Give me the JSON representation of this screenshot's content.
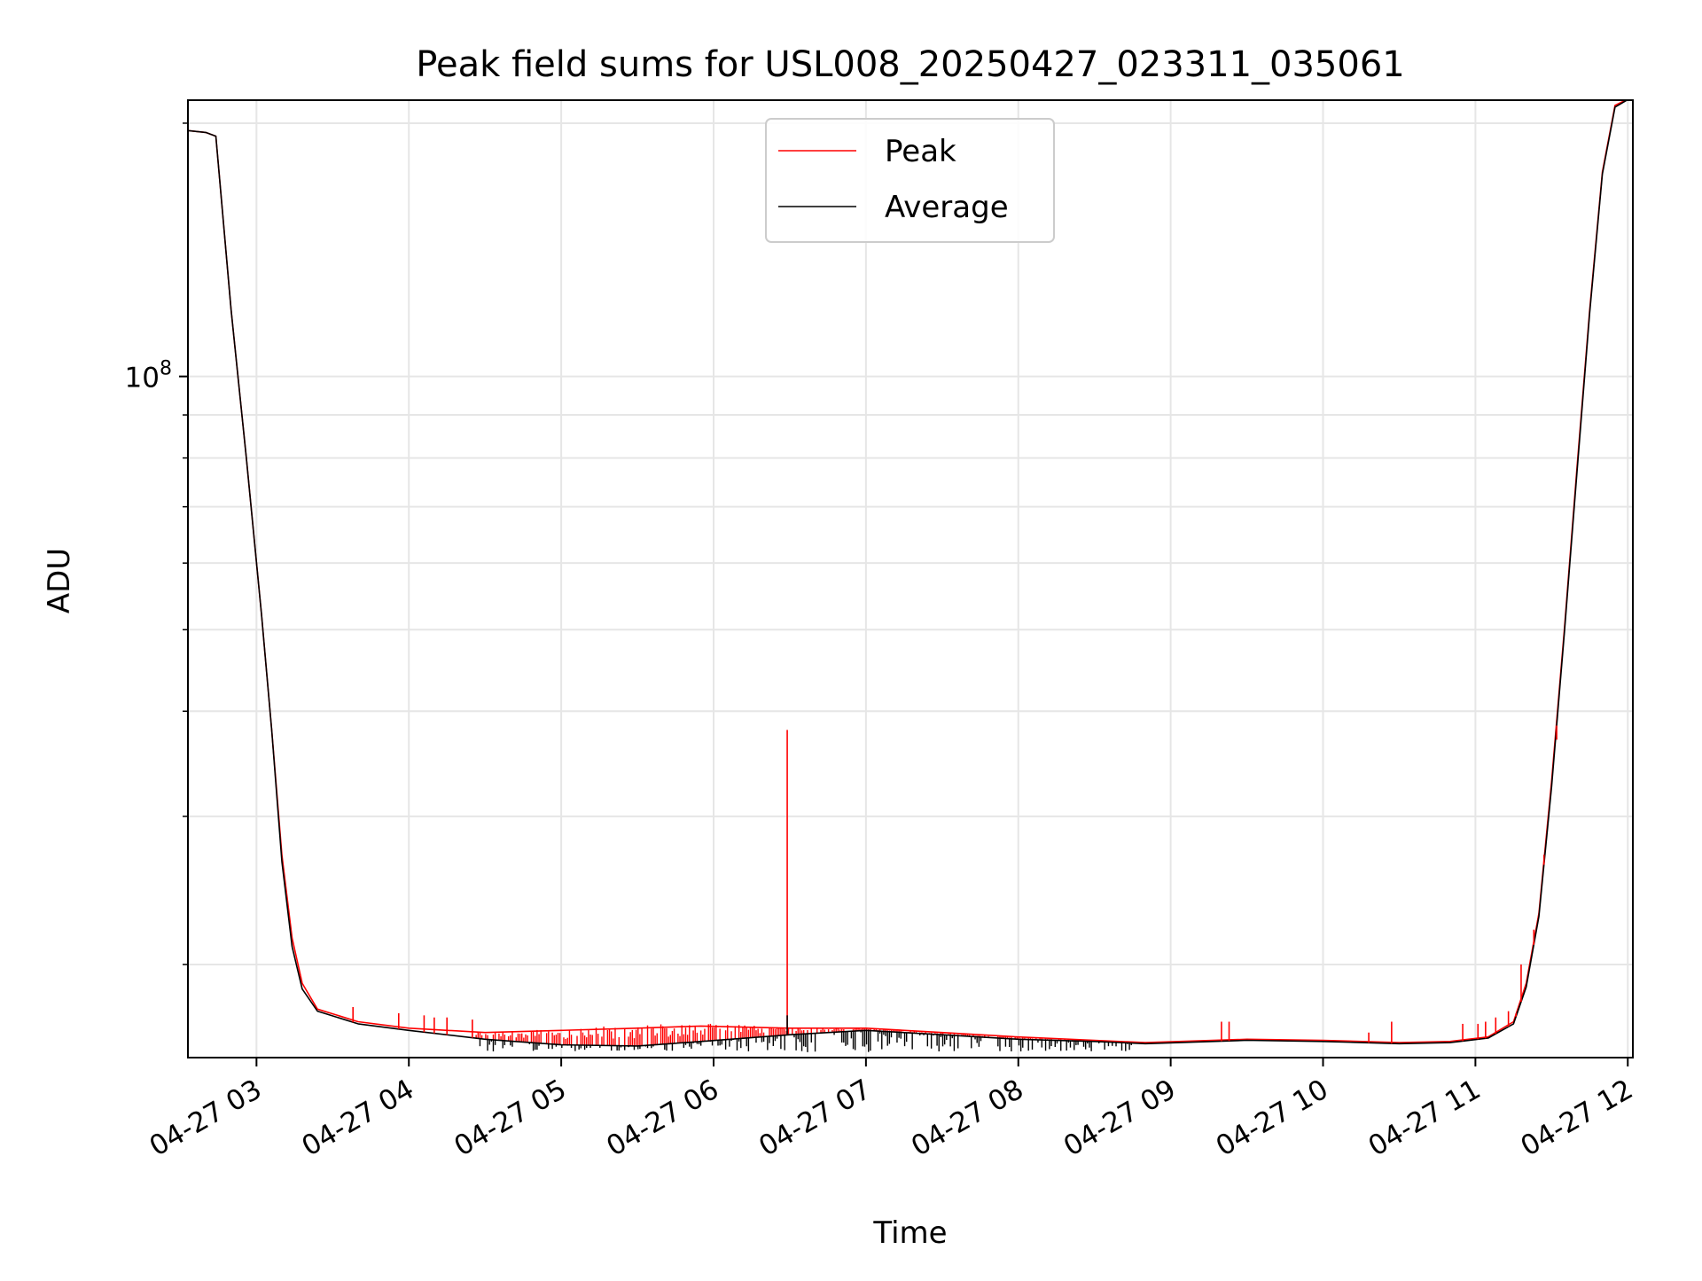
{
  "chart_data": {
    "type": "line",
    "title": "Peak field sums for USL008_20250427_023311_035061",
    "xlabel": "Time",
    "ylabel": "ADU",
    "y_scale": "log",
    "ylim": [
      15500000,
      213000000
    ],
    "xlim": [
      "2025-04-27 02:33",
      "2025-04-27 12:02"
    ],
    "x_ticks": [
      {
        "time": "2025-04-27 03:00",
        "label": "04-27 03"
      },
      {
        "time": "2025-04-27 04:00",
        "label": "04-27 04"
      },
      {
        "time": "2025-04-27 05:00",
        "label": "04-27 05"
      },
      {
        "time": "2025-04-27 06:00",
        "label": "04-27 06"
      },
      {
        "time": "2025-04-27 07:00",
        "label": "04-27 07"
      },
      {
        "time": "2025-04-27 08:00",
        "label": "04-27 08"
      },
      {
        "time": "2025-04-27 09:00",
        "label": "04-27 09"
      },
      {
        "time": "2025-04-27 10:00",
        "label": "04-27 10"
      },
      {
        "time": "2025-04-27 11:00",
        "label": "04-27 11"
      },
      {
        "time": "2025-04-27 12:00",
        "label": "04-27 12"
      }
    ],
    "y_major_ticks": [
      {
        "value": 100000000,
        "base": "10",
        "exponent": "8"
      }
    ],
    "y_minor_ticks": [
      20000000,
      30000000,
      40000000,
      50000000,
      60000000,
      70000000,
      80000000,
      90000000,
      200000000
    ],
    "grid": true,
    "legend_position": "upper center",
    "series": [
      {
        "name": "Peak",
        "color": "#ff0000",
        "points": [
          [
            "2025-04-27 02:33",
            196000000
          ],
          [
            "2025-04-27 02:40",
            195000000
          ],
          [
            "2025-04-27 02:44",
            193000000
          ],
          [
            "2025-04-27 02:50",
            120000000
          ],
          [
            "2025-04-27 02:56",
            80000000
          ],
          [
            "2025-04-27 03:02",
            52000000
          ],
          [
            "2025-04-27 03:06",
            38000000
          ],
          [
            "2025-04-27 03:10",
            27000000
          ],
          [
            "2025-04-27 03:14",
            21500000
          ],
          [
            "2025-04-27 03:18",
            19000000
          ],
          [
            "2025-04-27 03:24",
            17700000
          ],
          [
            "2025-04-27 03:40",
            17100000
          ],
          [
            "2025-04-27 04:00",
            16800000
          ],
          [
            "2025-04-27 04:30",
            16600000
          ],
          [
            "2025-04-27 05:00",
            16700000
          ],
          [
            "2025-04-27 05:30",
            16800000
          ],
          [
            "2025-04-27 05:55",
            16900000
          ],
          [
            "2025-04-27 06:30",
            16800000
          ],
          [
            "2025-04-27 07:00",
            16800000
          ],
          [
            "2025-04-27 07:30",
            16600000
          ],
          [
            "2025-04-27 08:00",
            16400000
          ],
          [
            "2025-04-27 08:30",
            16250000
          ],
          [
            "2025-04-27 08:50",
            16150000
          ],
          [
            "2025-04-27 09:30",
            16300000
          ],
          [
            "2025-04-27 10:00",
            16250000
          ],
          [
            "2025-04-27 10:30",
            16150000
          ],
          [
            "2025-04-27 10:50",
            16200000
          ],
          [
            "2025-04-27 11:05",
            16400000
          ],
          [
            "2025-04-27 11:15",
            17100000
          ],
          [
            "2025-04-27 11:20",
            19000000
          ],
          [
            "2025-04-27 11:25",
            23000000
          ],
          [
            "2025-04-27 11:30",
            33000000
          ],
          [
            "2025-04-27 11:35",
            50000000
          ],
          [
            "2025-04-27 11:40",
            78000000
          ],
          [
            "2025-04-27 11:45",
            120000000
          ],
          [
            "2025-04-27 11:50",
            175000000
          ],
          [
            "2025-04-27 11:55",
            210000000
          ],
          [
            "2025-04-27 12:02",
            215000000
          ]
        ],
        "spikes": [
          [
            "2025-04-27 03:38",
            17800000
          ],
          [
            "2025-04-27 03:56",
            17500000
          ],
          [
            "2025-04-27 04:06",
            17400000
          ],
          [
            "2025-04-27 04:10",
            17300000
          ],
          [
            "2025-04-27 04:15",
            17300000
          ],
          [
            "2025-04-27 04:25",
            17200000
          ],
          [
            "2025-04-27 06:29",
            38000000
          ],
          [
            "2025-04-27 09:20",
            17100000
          ],
          [
            "2025-04-27 09:23",
            17100000
          ],
          [
            "2025-04-27 10:18",
            16600000
          ],
          [
            "2025-04-27 10:27",
            17100000
          ],
          [
            "2025-04-27 10:55",
            17000000
          ],
          [
            "2025-04-27 11:01",
            17000000
          ],
          [
            "2025-04-27 11:04",
            17100000
          ],
          [
            "2025-04-27 11:08",
            17300000
          ],
          [
            "2025-04-27 11:13",
            17600000
          ],
          [
            "2025-04-27 11:16",
            17500000
          ],
          [
            "2025-04-27 11:18",
            20000000
          ],
          [
            "2025-04-27 11:23",
            22000000
          ],
          [
            "2025-04-27 11:27",
            27000000
          ],
          [
            "2025-04-27 11:32",
            37000000
          ]
        ]
      },
      {
        "name": "Average",
        "color": "#000000",
        "points": [
          [
            "2025-04-27 02:33",
            196000000
          ],
          [
            "2025-04-27 02:40",
            195000000
          ],
          [
            "2025-04-27 02:44",
            193000000
          ],
          [
            "2025-04-27 02:50",
            120000000
          ],
          [
            "2025-04-27 02:56",
            80000000
          ],
          [
            "2025-04-27 03:02",
            52000000
          ],
          [
            "2025-04-27 03:06",
            38000000
          ],
          [
            "2025-04-27 03:10",
            26500000
          ],
          [
            "2025-04-27 03:14",
            21000000
          ],
          [
            "2025-04-27 03:18",
            18700000
          ],
          [
            "2025-04-27 03:24",
            17600000
          ],
          [
            "2025-04-27 03:40",
            17000000
          ],
          [
            "2025-04-27 04:00",
            16700000
          ],
          [
            "2025-04-27 04:30",
            16300000
          ],
          [
            "2025-04-27 05:00",
            16050000
          ],
          [
            "2025-04-27 05:30",
            16000000
          ],
          [
            "2025-04-27 05:55",
            16200000
          ],
          [
            "2025-04-27 06:30",
            16500000
          ],
          [
            "2025-04-27 07:00",
            16700000
          ],
          [
            "2025-04-27 07:30",
            16500000
          ],
          [
            "2025-04-27 08:00",
            16300000
          ],
          [
            "2025-04-27 08:30",
            16200000
          ],
          [
            "2025-04-27 08:50",
            16100000
          ],
          [
            "2025-04-27 09:30",
            16250000
          ],
          [
            "2025-04-27 10:00",
            16200000
          ],
          [
            "2025-04-27 10:30",
            16100000
          ],
          [
            "2025-04-27 10:50",
            16150000
          ],
          [
            "2025-04-27 11:05",
            16350000
          ],
          [
            "2025-04-27 11:15",
            17000000
          ],
          [
            "2025-04-27 11:20",
            18800000
          ],
          [
            "2025-04-27 11:25",
            22800000
          ],
          [
            "2025-04-27 11:30",
            32500000
          ],
          [
            "2025-04-27 11:35",
            49500000
          ],
          [
            "2025-04-27 11:40",
            77000000
          ],
          [
            "2025-04-27 11:45",
            119000000
          ],
          [
            "2025-04-27 11:50",
            174000000
          ],
          [
            "2025-04-27 11:55",
            209000000
          ],
          [
            "2025-04-27 12:02",
            215000000
          ]
        ],
        "spikes": [
          [
            "2025-04-27 06:29",
            17400000
          ]
        ]
      }
    ],
    "noise_band": {
      "from": "2025-04-27 04:25",
      "to": "2025-04-27 08:45",
      "peak_upper": 16900000,
      "average_lower": 15800000
    }
  }
}
